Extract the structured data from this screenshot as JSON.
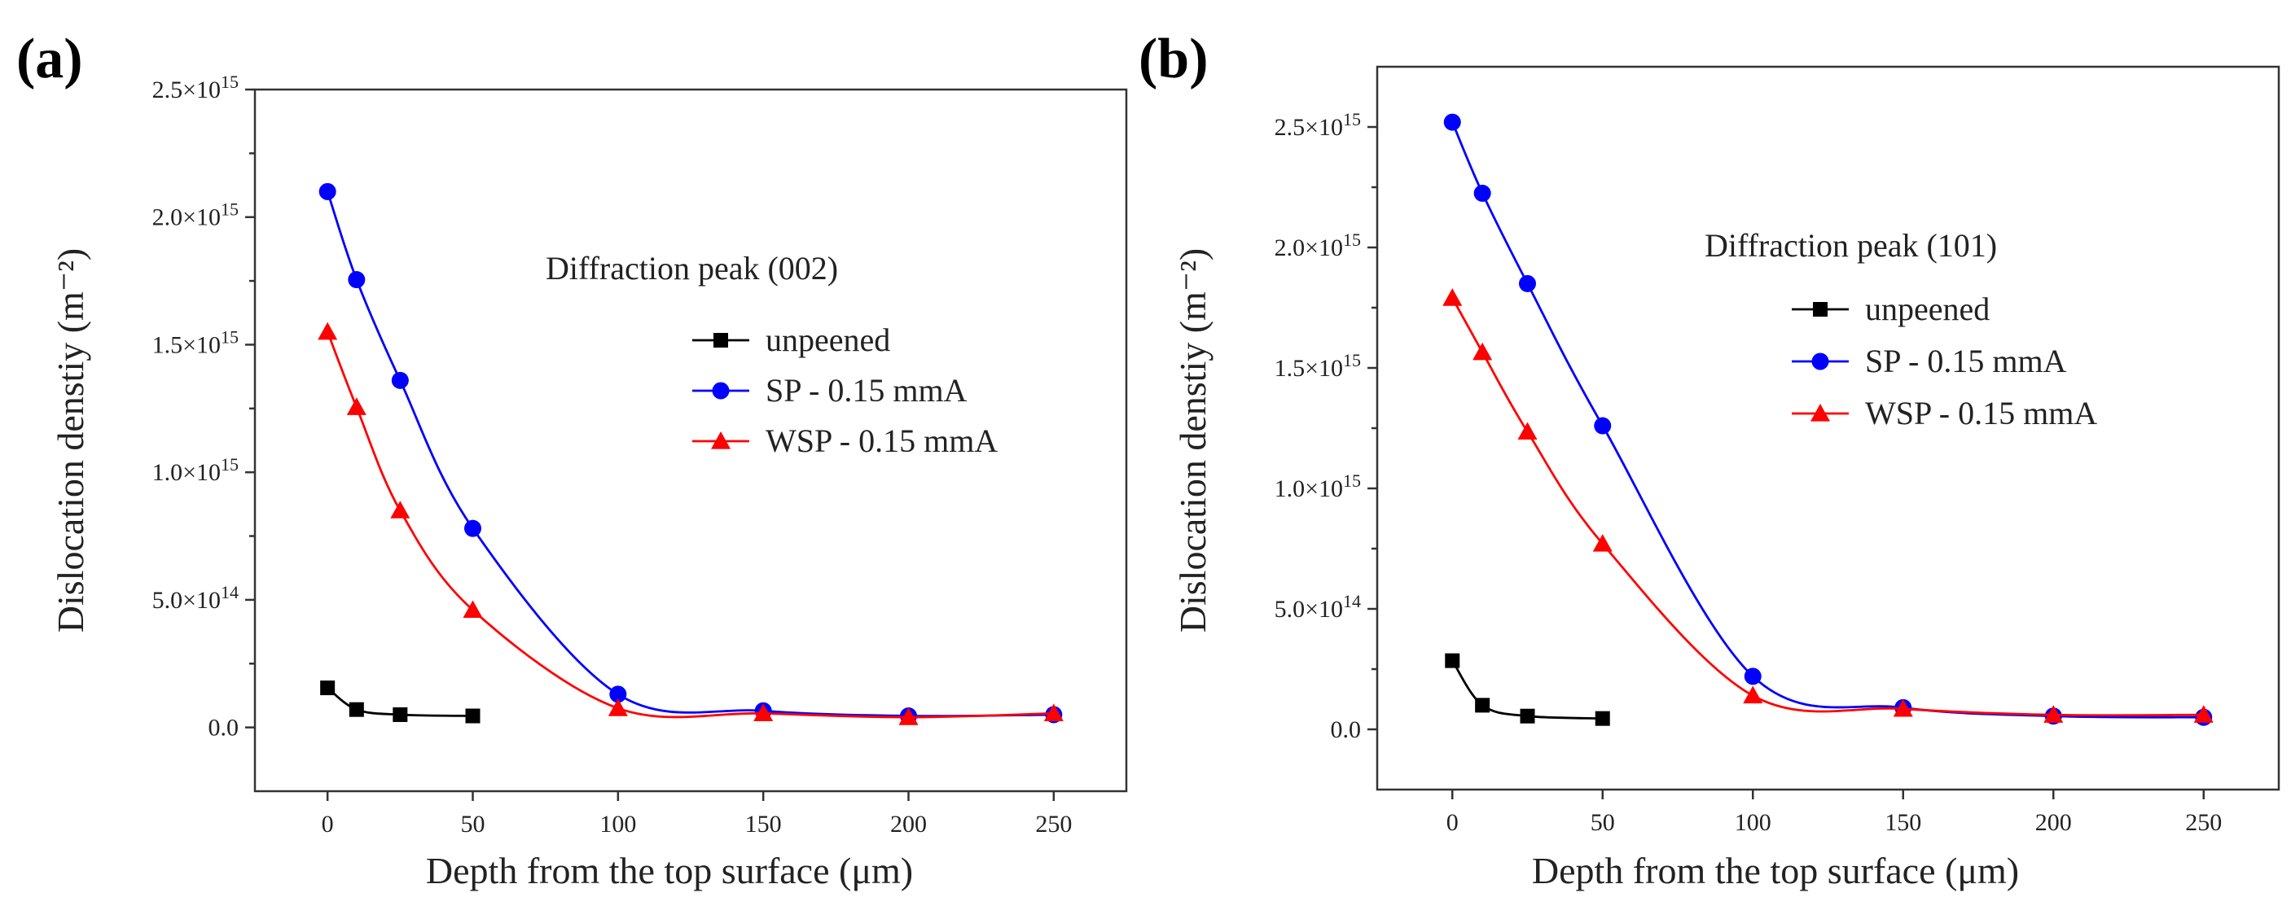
{
  "chart_data": [
    {
      "type": "scatter",
      "panel_label": "(a)",
      "annotation": "Diffraction peak (002)",
      "xlabel": "Depth from the top surface (μm)",
      "ylabel": "Dislocation denstiy (m⁻²)",
      "xlim": [
        -25,
        275
      ],
      "ylim": [
        -250000000000000.0,
        2500000000000000.0
      ],
      "xticks": [
        0,
        50,
        100,
        150,
        200,
        250
      ],
      "xtick_labels": [
        "0",
        "50",
        "100",
        "150",
        "200",
        "250"
      ],
      "yticks": [
        0,
        500000000000000.0,
        1000000000000000.0,
        1500000000000000.0,
        2000000000000000.0,
        2500000000000000.0
      ],
      "ytick_labels": [
        {
          "mant": "0.0",
          "exp": ""
        },
        {
          "mant": "5.0×10",
          "exp": "14"
        },
        {
          "mant": "1.0×10",
          "exp": "15"
        },
        {
          "mant": "1.5×10",
          "exp": "15"
        },
        {
          "mant": "2.0×10",
          "exp": "15"
        },
        {
          "mant": "2.5×10",
          "exp": "15"
        }
      ],
      "legend_position": "center-right",
      "series": [
        {
          "name": "unpeened",
          "color": "#000000",
          "marker": "square",
          "x": [
            0,
            10,
            25,
            50
          ],
          "y": [
            155000000000000.0,
            70000000000000.0,
            50000000000000.0,
            45000000000000.0
          ]
        },
        {
          "name": "SP - 0.15 mmA",
          "color": "#0000ff",
          "marker": "circle",
          "x": [
            0,
            10,
            25,
            50,
            100,
            150,
            200,
            250
          ],
          "y": [
            2100000000000000.0,
            1755000000000000.0,
            1360000000000000.0,
            780000000000000.0,
            130000000000000.0,
            65000000000000.0,
            45000000000000.0,
            50000000000000.0
          ]
        },
        {
          "name": "WSP - 0.15 mmA",
          "color": "#ff0000",
          "marker": "triangle",
          "x": [
            0,
            10,
            25,
            50,
            100,
            150,
            200,
            250
          ],
          "y": [
            1550000000000000.0,
            1255000000000000.0,
            850000000000000.0,
            460000000000000.0,
            75000000000000.0,
            55000000000000.0,
            40000000000000.0,
            55000000000000.0
          ]
        }
      ]
    },
    {
      "type": "scatter",
      "panel_label": "(b)",
      "annotation": "Diffraction peak (101)",
      "xlabel": "Depth from the top surface (μm)",
      "ylabel": "Dislocation denstiy (m⁻²)",
      "xlim": [
        -25,
        275
      ],
      "ylim": [
        -250000000000000.0,
        2750000000000000.0
      ],
      "xticks": [
        0,
        50,
        100,
        150,
        200,
        250
      ],
      "xtick_labels": [
        "0",
        "50",
        "100",
        "150",
        "200",
        "250"
      ],
      "yticks": [
        0,
        500000000000000.0,
        1000000000000000.0,
        1500000000000000.0,
        2000000000000000.0,
        2500000000000000.0
      ],
      "ytick_labels": [
        {
          "mant": "0.0",
          "exp": ""
        },
        {
          "mant": "5.0×10",
          "exp": "14"
        },
        {
          "mant": "1.0×10",
          "exp": "15"
        },
        {
          "mant": "1.5×10",
          "exp": "15"
        },
        {
          "mant": "2.0×10",
          "exp": "15"
        },
        {
          "mant": "2.5×10",
          "exp": "15"
        }
      ],
      "legend_position": "center-right",
      "series": [
        {
          "name": "unpeened",
          "color": "#000000",
          "marker": "square",
          "x": [
            0,
            10,
            25,
            50
          ],
          "y": [
            285000000000000.0,
            100000000000000.0,
            55000000000000.0,
            45000000000000.0
          ]
        },
        {
          "name": "SP - 0.15 mmA",
          "color": "#0000ff",
          "marker": "circle",
          "x": [
            0,
            10,
            25,
            50,
            100,
            150,
            200,
            250
          ],
          "y": [
            2520000000000000.0,
            2225000000000000.0,
            1850000000000000.0,
            1260000000000000.0,
            220000000000000.0,
            90000000000000.0,
            55000000000000.0,
            50000000000000.0
          ]
        },
        {
          "name": "WSP - 0.15 mmA",
          "color": "#ff0000",
          "marker": "triangle",
          "x": [
            0,
            10,
            25,
            50,
            100,
            150,
            200,
            250
          ],
          "y": [
            1790000000000000.0,
            1565000000000000.0,
            1235000000000000.0,
            770000000000000.0,
            140000000000000.0,
            85000000000000.0,
            60000000000000.0,
            60000000000000.0
          ]
        }
      ]
    }
  ]
}
